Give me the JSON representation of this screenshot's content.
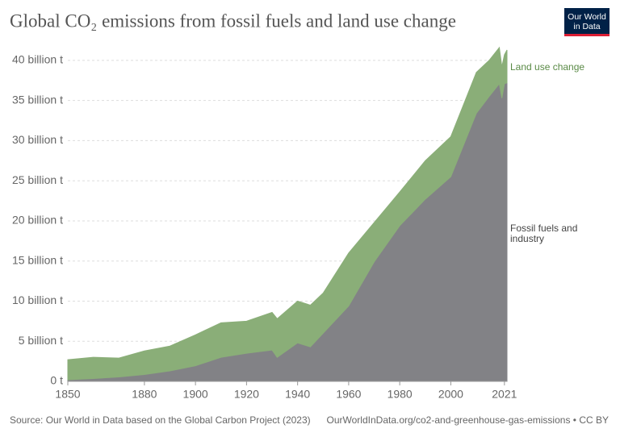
{
  "chart_data": {
    "type": "stacked-area",
    "title": "Global CO₂ emissions from fossil fuels and land use change",
    "logo": [
      "Our World",
      "in Data"
    ],
    "source": "Source: Our World in Data based on the Global Carbon Project (2023)",
    "footer": "OurWorldInData.org/co2-and-greenhouse-gas-emissions • CC BY",
    "x": [
      1850,
      1860,
      1870,
      1880,
      1890,
      1900,
      1910,
      1920,
      1930,
      1932,
      1940,
      1945,
      1950,
      1960,
      1970,
      1980,
      1990,
      2000,
      2010,
      2015,
      2019,
      2020,
      2021,
      2022
    ],
    "series": [
      {
        "name": "Fossil fuels and industry",
        "color": "#828286",
        "values": [
          0.2,
          0.35,
          0.55,
          0.85,
          1.3,
          1.95,
          3.0,
          3.5,
          3.9,
          3.0,
          4.8,
          4.3,
          6.0,
          9.4,
          14.9,
          19.4,
          22.7,
          25.5,
          33.4,
          35.5,
          37.1,
          35.3,
          37.1,
          37.2
        ]
      },
      {
        "name": "Land use change",
        "color": "#8aae78",
        "values": [
          2.5,
          2.65,
          2.35,
          2.95,
          3.1,
          3.85,
          4.3,
          4.0,
          4.7,
          4.8,
          5.2,
          5.2,
          5.0,
          6.6,
          4.9,
          4.2,
          4.8,
          5.0,
          5.1,
          4.5,
          4.5,
          3.9,
          3.6,
          4.1
        ]
      }
    ],
    "xlim": [
      1850,
      2022
    ],
    "xticks": [
      1850,
      1880,
      1900,
      1920,
      1940,
      1960,
      1980,
      2000,
      2021
    ],
    "ylim": [
      0,
      42
    ],
    "yticks": [
      {
        "value": 0,
        "label": "0 t"
      },
      {
        "value": 5,
        "label": "5 billion t"
      },
      {
        "value": 10,
        "label": "10 billion t"
      },
      {
        "value": 15,
        "label": "15 billion t"
      },
      {
        "value": 20,
        "label": "20 billion t"
      },
      {
        "value": 25,
        "label": "25 billion t"
      },
      {
        "value": 30,
        "label": "30 billion t"
      },
      {
        "value": 35,
        "label": "35 billion t"
      },
      {
        "value": 40,
        "label": "40 billion t"
      }
    ],
    "grid": true
  }
}
